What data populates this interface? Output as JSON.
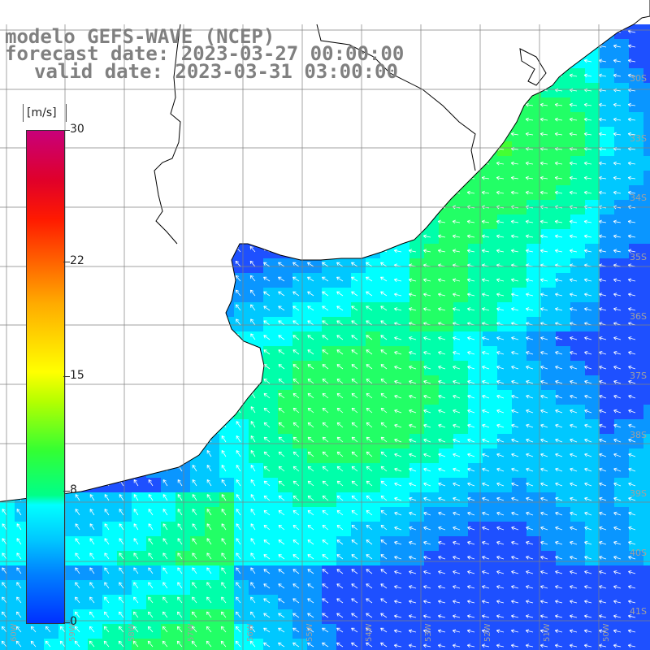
{
  "title_lines": [
    "modelo GEFS-WAVE (NCEP)",
    "forecast date: 2023-03-27 00:00:00",
    "valid date: 2023-03-31 03:00:00"
  ],
  "colorbar": {
    "unit": "[m/s]",
    "ticks": [
      "30",
      "22",
      "15",
      "8",
      "0"
    ],
    "tick_values": [
      30,
      22,
      15,
      8,
      0
    ],
    "min": 0,
    "max": 30,
    "colors": [
      "#0030ff",
      "#0080ff",
      "#00c8ff",
      "#00ffff",
      "#00ff88",
      "#33ff33",
      "#b4ff00",
      "#ffff00",
      "#ffaa00",
      "#ff6600",
      "#ff1a00",
      "#e0002a",
      "#c8007a"
    ]
  },
  "map": {
    "variable": "wind speed and direction",
    "lat_labels": [
      "30S",
      "33S",
      "34S",
      "35S",
      "36S",
      "37S",
      "38S",
      "39S",
      "40S",
      "41S"
    ],
    "lon_labels": [
      "60W",
      "59W",
      "58W",
      "57W",
      "56W",
      "55W",
      "54W",
      "53W",
      "52W",
      "51W",
      "50W"
    ],
    "field_colors": {
      "land": "#ffffff",
      "grid": "#808080",
      "coast": "#000000",
      "arrow": "#ffffff"
    }
  }
}
